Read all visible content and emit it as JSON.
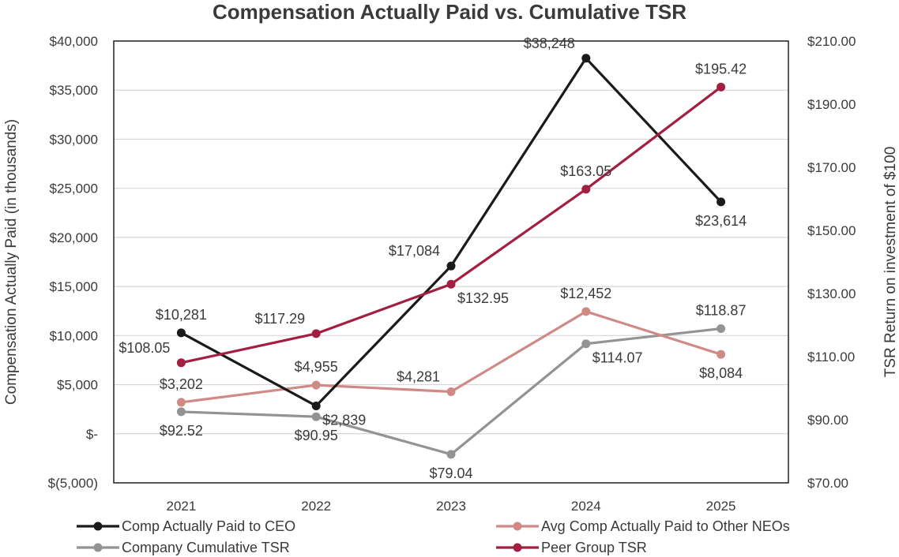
{
  "chart_data": {
    "type": "line",
    "title": "Compensation Actually Paid vs. Cumulative TSR",
    "xlabel": "",
    "ylabel": "Compensation Actually Paid (in thousands)",
    "y2label": "TSR Return on investment of $100",
    "categories": [
      "2021",
      "2022",
      "2023",
      "2024",
      "2025"
    ],
    "ylim": [
      -5000,
      40000
    ],
    "y2lim": [
      70,
      210
    ],
    "y_ticks": [
      {
        "value": -5000,
        "label": "$(5,000)"
      },
      {
        "value": 0,
        "label": "$-"
      },
      {
        "value": 5000,
        "label": "$5,000"
      },
      {
        "value": 10000,
        "label": "$10,000"
      },
      {
        "value": 15000,
        "label": "$15,000"
      },
      {
        "value": 20000,
        "label": "$20,000"
      },
      {
        "value": 25000,
        "label": "$25,000"
      },
      {
        "value": 30000,
        "label": "$30,000"
      },
      {
        "value": 35000,
        "label": "$35,000"
      },
      {
        "value": 40000,
        "label": "$40,000"
      }
    ],
    "y2_ticks": [
      {
        "value": 70,
        "label": "$70.00"
      },
      {
        "value": 90,
        "label": "$90.00"
      },
      {
        "value": 110,
        "label": "$110.00"
      },
      {
        "value": 130,
        "label": "$130.00"
      },
      {
        "value": 150,
        "label": "$150.00"
      },
      {
        "value": 170,
        "label": "$170.00"
      },
      {
        "value": 190,
        "label": "$190.00"
      },
      {
        "value": 210,
        "label": "$210.00"
      }
    ],
    "grid": true,
    "series": [
      {
        "name": "Comp Actually Paid to CEO",
        "axis": "left",
        "color": "#1a1a1a",
        "values": [
          10281,
          2839,
          17084,
          38248,
          23614
        ],
        "labels": [
          "$10,281",
          "$2,839",
          "$17,084",
          "$38,248",
          "$23,614"
        ],
        "label_pos": [
          "above",
          "below-right",
          "above-left",
          "above-left",
          "below"
        ]
      },
      {
        "name": "Avg Comp Actually Paid to Other NEOs",
        "axis": "left",
        "color": "#d08a86",
        "values": [
          3202,
          4955,
          4281,
          12452,
          8084
        ],
        "labels": [
          "$3,202",
          "$4,955",
          "$4,281",
          "$12,452",
          "$8,084"
        ],
        "label_pos": [
          "above",
          "above",
          "above-left",
          "above",
          "below"
        ]
      },
      {
        "name": "Company Cumulative TSR",
        "axis": "right",
        "color": "#939393",
        "values": [
          92.52,
          90.95,
          79.04,
          114.07,
          118.87
        ],
        "labels": [
          "$92.52",
          "$90.95",
          "$79.04",
          "$114.07",
          "$118.87"
        ],
        "label_pos": [
          "below",
          "below",
          "below",
          "below-right",
          "above"
        ]
      },
      {
        "name": "Peer Group TSR",
        "axis": "right",
        "color": "#a31f42",
        "values": [
          108.05,
          117.29,
          132.95,
          163.05,
          195.42
        ],
        "labels": [
          "$108.05",
          "$117.29",
          "$132.95",
          "$163.05",
          "$195.42"
        ],
        "label_pos": [
          "above-left",
          "above-left",
          "below-right",
          "above",
          "above"
        ]
      }
    ],
    "legend": {
      "placement": "bottom",
      "order": [
        "Comp Actually Paid to CEO",
        "Avg Comp Actually Paid to Other NEOs",
        "Company Cumulative TSR",
        "Peer Group TSR"
      ]
    }
  }
}
